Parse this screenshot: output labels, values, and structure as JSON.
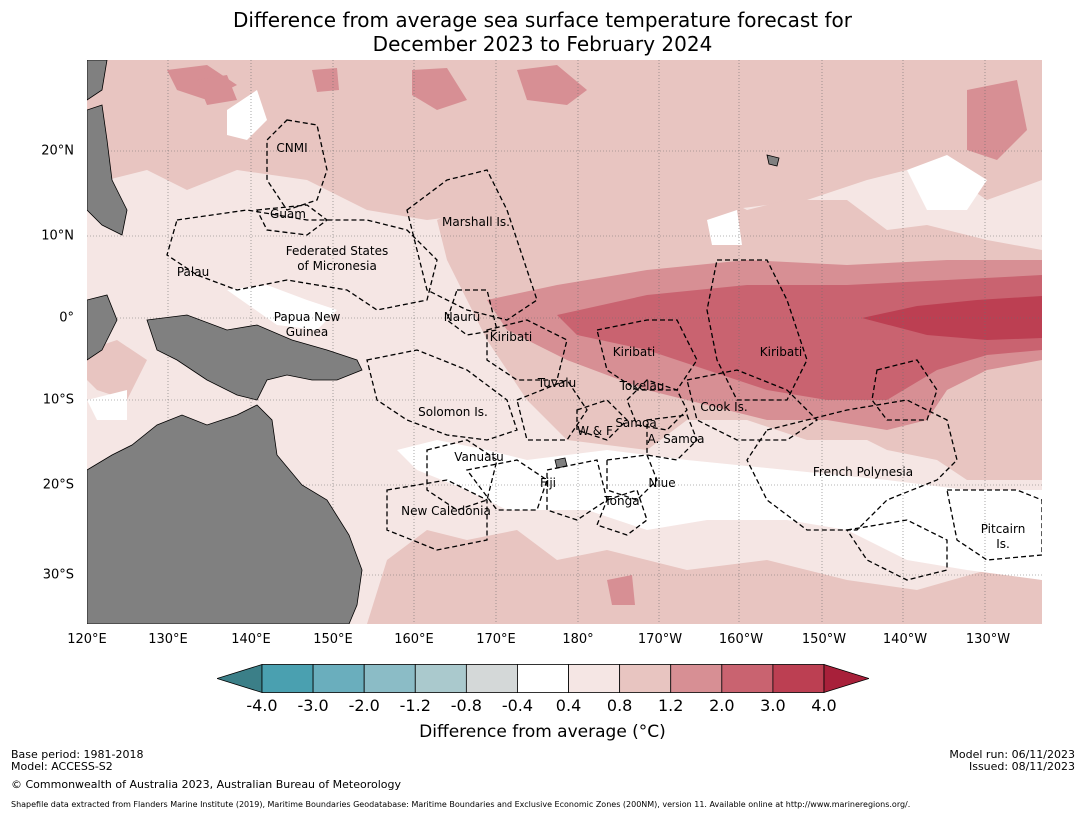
{
  "title": {
    "line1": "Difference from average sea surface temperature forecast for",
    "line2": "December 2023 to February 2024"
  },
  "map": {
    "lon_labels": [
      "120°E",
      "130°E",
      "140°E",
      "150°E",
      "160°E",
      "170°E",
      "180°",
      "170°W",
      "160°W",
      "150°W",
      "140°W",
      "130°W"
    ],
    "lat_labels": [
      "20°N",
      "10°N",
      "0°",
      "10°S",
      "20°S",
      "30°S"
    ],
    "regions": [
      "CNMI",
      "Guam",
      "Marshall Is.",
      "Federated States",
      "of Micronesia",
      "Palau",
      "Papua New",
      "Guinea",
      "Nauru",
      "Kiribati",
      "Kiribati",
      "Kiribati",
      "Tuvalu",
      "Tokelau",
      "Solomon Is.",
      "Cook Is.",
      "Samoa",
      "W & F",
      "A. Samoa",
      "Vanuatu",
      "Fiji",
      "Niue",
      "Tonga",
      "French Polynesia",
      "New Caledonia",
      "Pitcairn",
      "Is."
    ]
  },
  "colorbar": {
    "ticks": [
      "-4.0",
      "-3.0",
      "-2.0",
      "-1.2",
      "-0.8",
      "-0.4",
      "0.4",
      "0.8",
      "1.2",
      "2.0",
      "3.0",
      "4.0"
    ],
    "colors": [
      "#4aa0b0",
      "#6aaebd",
      "#8bbcc6",
      "#aac9cd",
      "#d4d8d8",
      "#ffffff",
      "#f5e6e4",
      "#e8c5c1",
      "#d78f94",
      "#c96370",
      "#bc3f52"
    ],
    "low_extend_color": "#3b7f88",
    "high_extend_color": "#a8203a",
    "label": "Difference from average (°C)"
  },
  "footer": {
    "base_period": "Base period: 1981-2018",
    "model": "Model: ACCESS-S2",
    "copyright": "© Commonwealth of Australia 2023, Australian Bureau of Meteorology",
    "model_run": "Model run: 06/11/2023",
    "issued": "Issued: 08/11/2023",
    "shapefile": "Shapefile data extracted from Flanders Marine Institute (2019), Maritime Boundaries Geodatabase: Maritime Boundaries and Exclusive Economic Zones (200NM), version 11. Available online at http://www.marineregions.org/."
  }
}
